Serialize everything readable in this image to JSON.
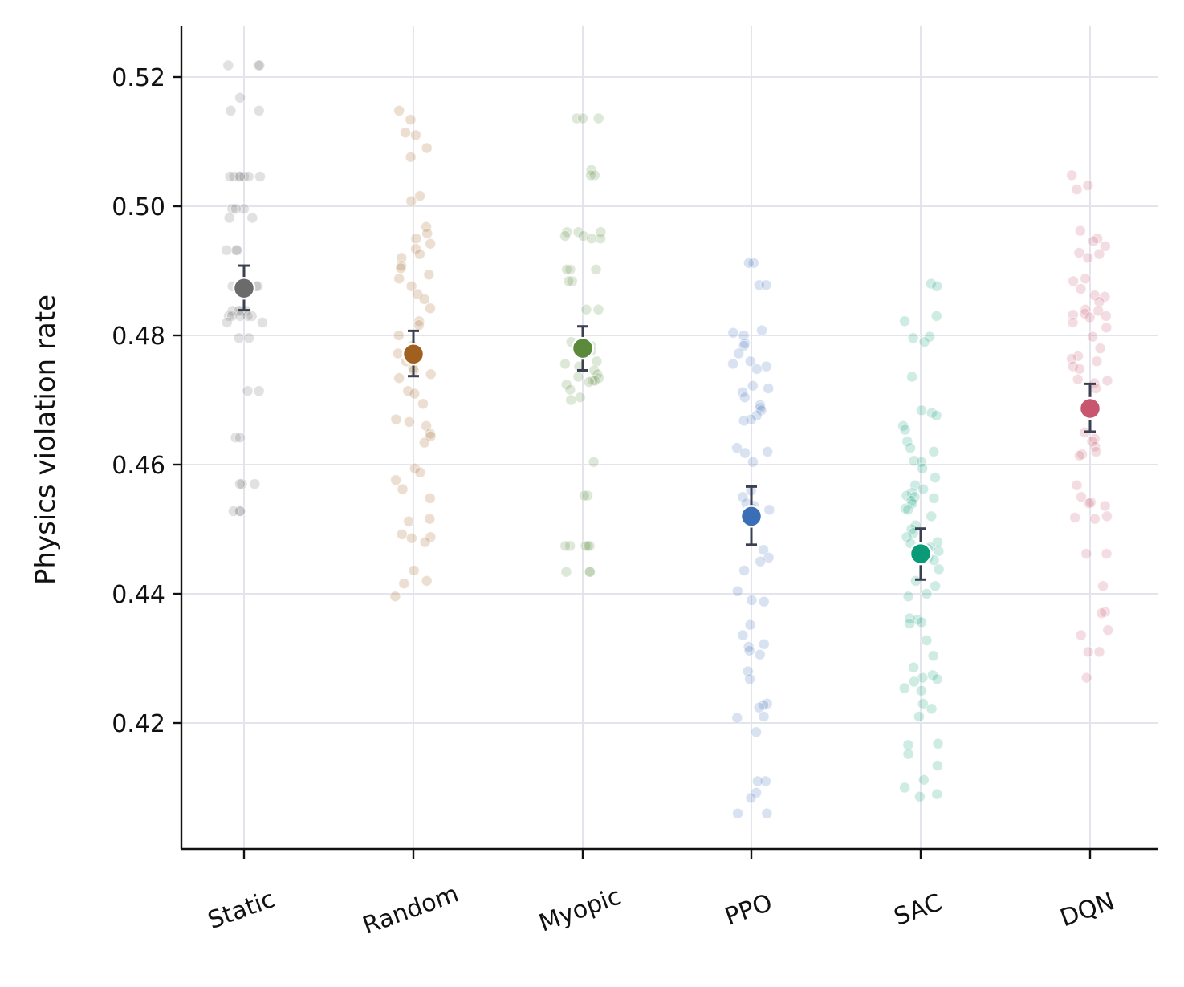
{
  "chart_data": {
    "type": "scatter",
    "xlabel": "",
    "ylabel": "Physics violation rate",
    "ylim": [
      0.4,
      0.527
    ],
    "yticks": [
      "0.42",
      "0.44",
      "0.46",
      "0.48",
      "0.50",
      "0.52"
    ],
    "grid": true,
    "categories": [
      "Static",
      "Random",
      "Myopic",
      "PPO",
      "SAC",
      "DQN"
    ],
    "series": [
      {
        "category": "Static",
        "color": "#6b6b6b",
        "mean": 0.4873,
        "ci": [
          0.4839,
          0.4908
        ],
        "points": [
          0.5218,
          0.5218,
          0.5218,
          0.5168,
          0.5148,
          0.5148,
          0.5046,
          0.5046,
          0.5046,
          0.5046,
          0.5046,
          0.5046,
          0.5046,
          0.4996,
          0.4996,
          0.4996,
          0.4982,
          0.4982,
          0.4932,
          0.4932,
          0.4932,
          0.4876,
          0.4876,
          0.4876,
          0.4838,
          0.4838,
          0.4838,
          0.4838,
          0.483,
          0.483,
          0.483,
          0.483,
          0.483,
          0.482,
          0.482,
          0.4796,
          0.4796,
          0.4714,
          0.4714,
          0.4642,
          0.4642,
          0.457,
          0.457,
          0.457,
          0.4528,
          0.4528,
          0.4528
        ]
      },
      {
        "category": "Random",
        "color": "#a1601f",
        "mean": 0.4771,
        "ci": [
          0.4737,
          0.4807
        ],
        "points": [
          0.5148,
          0.5134,
          0.5114,
          0.511,
          0.509,
          0.5076,
          0.5016,
          0.5008,
          0.4968,
          0.4958,
          0.495,
          0.4942,
          0.4934,
          0.4926,
          0.492,
          0.4908,
          0.4904,
          0.4894,
          0.4888,
          0.4876,
          0.4864,
          0.4856,
          0.4842,
          0.4822,
          0.4816,
          0.48,
          0.4784,
          0.4772,
          0.476,
          0.475,
          0.4746,
          0.474,
          0.4734,
          0.4714,
          0.471,
          0.4694,
          0.467,
          0.4666,
          0.466,
          0.4648,
          0.4644,
          0.4634,
          0.4594,
          0.4588,
          0.4576,
          0.4562,
          0.4548,
          0.4516,
          0.4512,
          0.4492,
          0.4488,
          0.4486,
          0.448,
          0.4436,
          0.442,
          0.4416,
          0.4396
        ]
      },
      {
        "category": "Myopic",
        "color": "#5a8a3a",
        "mean": 0.478,
        "ci": [
          0.4746,
          0.4814
        ],
        "points": [
          0.5136,
          0.5136,
          0.5136,
          0.5056,
          0.5048,
          0.5048,
          0.496,
          0.496,
          0.496,
          0.4954,
          0.4954,
          0.495,
          0.495,
          0.4902,
          0.4902,
          0.4902,
          0.4884,
          0.4884,
          0.484,
          0.484,
          0.479,
          0.4784,
          0.4776,
          0.477,
          0.476,
          0.4756,
          0.4752,
          0.4746,
          0.474,
          0.4736,
          0.4734,
          0.473,
          0.473,
          0.4728,
          0.4724,
          0.4716,
          0.4704,
          0.47,
          0.4604,
          0.4552,
          0.4552,
          0.4474,
          0.4474,
          0.4474,
          0.4474,
          0.4474,
          0.4434,
          0.4434,
          0.4434
        ]
      },
      {
        "category": "PPO",
        "color": "#3a6fb8",
        "mean": 0.452,
        "ci": [
          0.4476,
          0.4566
        ],
        "points": [
          0.4912,
          0.4912,
          0.4878,
          0.4878,
          0.4808,
          0.4804,
          0.48,
          0.4788,
          0.4784,
          0.4772,
          0.476,
          0.4756,
          0.4752,
          0.4748,
          0.4722,
          0.4718,
          0.4712,
          0.4704,
          0.4692,
          0.4688,
          0.4684,
          0.4676,
          0.467,
          0.4668,
          0.4626,
          0.462,
          0.4618,
          0.4604,
          0.456,
          0.455,
          0.454,
          0.4536,
          0.4532,
          0.453,
          0.4528,
          0.4514,
          0.4468,
          0.4456,
          0.445,
          0.4436,
          0.4404,
          0.439,
          0.4388,
          0.4352,
          0.4336,
          0.4322,
          0.4318,
          0.4312,
          0.4306,
          0.428,
          0.4268,
          0.423,
          0.4228,
          0.4224,
          0.421,
          0.4208,
          0.4186,
          0.411,
          0.411,
          0.4092,
          0.4084,
          0.406,
          0.406
        ]
      },
      {
        "category": "SAC",
        "color": "#0a9a78",
        "mean": 0.4462,
        "ci": [
          0.4422,
          0.4501
        ],
        "points": [
          0.488,
          0.4876,
          0.483,
          0.4822,
          0.4798,
          0.4796,
          0.479,
          0.4736,
          0.4684,
          0.468,
          0.4676,
          0.466,
          0.4654,
          0.4636,
          0.4626,
          0.462,
          0.4606,
          0.4604,
          0.4594,
          0.458,
          0.4568,
          0.4562,
          0.4556,
          0.4552,
          0.455,
          0.4548,
          0.4544,
          0.454,
          0.4532,
          0.453,
          0.452,
          0.4506,
          0.45,
          0.4494,
          0.4488,
          0.448,
          0.4478,
          0.4472,
          0.447,
          0.4466,
          0.4456,
          0.4452,
          0.4438,
          0.442,
          0.4412,
          0.44,
          0.4396,
          0.4362,
          0.436,
          0.4356,
          0.4354,
          0.4328,
          0.4304,
          0.4286,
          0.4274,
          0.427,
          0.4268,
          0.4264,
          0.4254,
          0.425,
          0.423,
          0.4222,
          0.421,
          0.4168,
          0.4166,
          0.4152,
          0.4134,
          0.4112,
          0.41,
          0.409,
          0.4086
        ]
      },
      {
        "category": "DQN",
        "color": "#c8566e",
        "mean": 0.4687,
        "ci": [
          0.4651,
          0.4725
        ],
        "points": [
          0.5048,
          0.5032,
          0.5026,
          0.4962,
          0.495,
          0.4946,
          0.4938,
          0.4928,
          0.4926,
          0.492,
          0.4888,
          0.4884,
          0.4872,
          0.4862,
          0.486,
          0.4852,
          0.484,
          0.4838,
          0.4834,
          0.4832,
          0.483,
          0.4828,
          0.482,
          0.4812,
          0.4798,
          0.478,
          0.4768,
          0.4764,
          0.476,
          0.4752,
          0.4748,
          0.4732,
          0.473,
          0.4726,
          0.4718,
          0.465,
          0.464,
          0.4636,
          0.4628,
          0.462,
          0.4616,
          0.4614,
          0.4568,
          0.455,
          0.4542,
          0.454,
          0.4536,
          0.452,
          0.4518,
          0.4516,
          0.4462,
          0.4462,
          0.4412,
          0.4372,
          0.437,
          0.4344,
          0.4336,
          0.431,
          0.431,
          0.427
        ]
      }
    ]
  }
}
